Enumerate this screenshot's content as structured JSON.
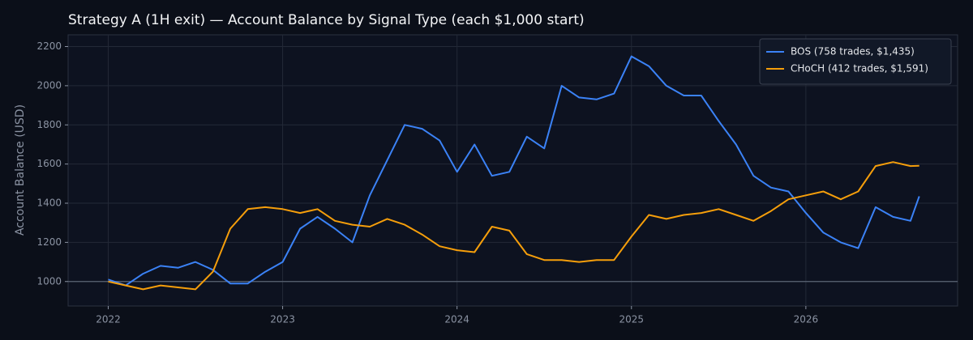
{
  "chart_data": {
    "type": "line",
    "title": "Strategy A (1H exit) — Account Balance by Signal Type (each $1,000 start)",
    "y_label": "Account Balance (USD)",
    "x": [
      2022.0,
      2022.1,
      2022.2,
      2022.3,
      2022.4,
      2022.5,
      2022.6,
      2022.7,
      2022.8,
      2022.9,
      2023.0,
      2023.1,
      2023.2,
      2023.3,
      2023.4,
      2023.5,
      2023.6,
      2023.7,
      2023.8,
      2023.9,
      2024.0,
      2024.1,
      2024.2,
      2024.3,
      2024.4,
      2024.5,
      2024.6,
      2024.7,
      2024.8,
      2024.9,
      2025.0,
      2025.1,
      2025.2,
      2025.3,
      2025.4,
      2025.5,
      2025.6,
      2025.7,
      2025.8,
      2025.9,
      2026.0,
      2026.1,
      2026.2,
      2026.3,
      2026.4,
      2026.5,
      2026.6,
      2026.65
    ],
    "series": [
      {
        "name": "BOS (758 trades, $1,435)",
        "color": "#3b82f6",
        "values": [
          1010,
          980,
          1040,
          1080,
          1070,
          1100,
          1060,
          990,
          990,
          1050,
          1100,
          1270,
          1330,
          1270,
          1200,
          1440,
          1620,
          1800,
          1780,
          1720,
          1560,
          1700,
          1540,
          1560,
          1740,
          1680,
          2000,
          1940,
          1930,
          1960,
          2150,
          2100,
          2000,
          1950,
          1950,
          1820,
          1700,
          1540,
          1480,
          1460,
          1350,
          1250,
          1200,
          1170,
          1380,
          1330,
          1310,
          1435
        ]
      },
      {
        "name": "CHoCH (412 trades, $1,591)",
        "color": "#f59e0b",
        "values": [
          1000,
          980,
          960,
          980,
          970,
          960,
          1050,
          1270,
          1370,
          1380,
          1370,
          1350,
          1370,
          1310,
          1290,
          1280,
          1320,
          1290,
          1240,
          1180,
          1160,
          1150,
          1280,
          1260,
          1140,
          1110,
          1110,
          1100,
          1110,
          1110,
          1230,
          1340,
          1320,
          1340,
          1350,
          1370,
          1340,
          1310,
          1360,
          1420,
          1440,
          1460,
          1420,
          1460,
          1590,
          1610,
          1590,
          1591
        ]
      }
    ],
    "xlim": [
      2021.77,
      2026.87
    ],
    "xticks": [
      2022,
      2023,
      2024,
      2025,
      2026
    ],
    "ylim": [
      875,
      2260
    ],
    "yticks": [
      1000,
      1200,
      1400,
      1600,
      1800,
      2000,
      2200
    ],
    "reference_line": 1000,
    "grid": true,
    "legend": "upper right"
  }
}
